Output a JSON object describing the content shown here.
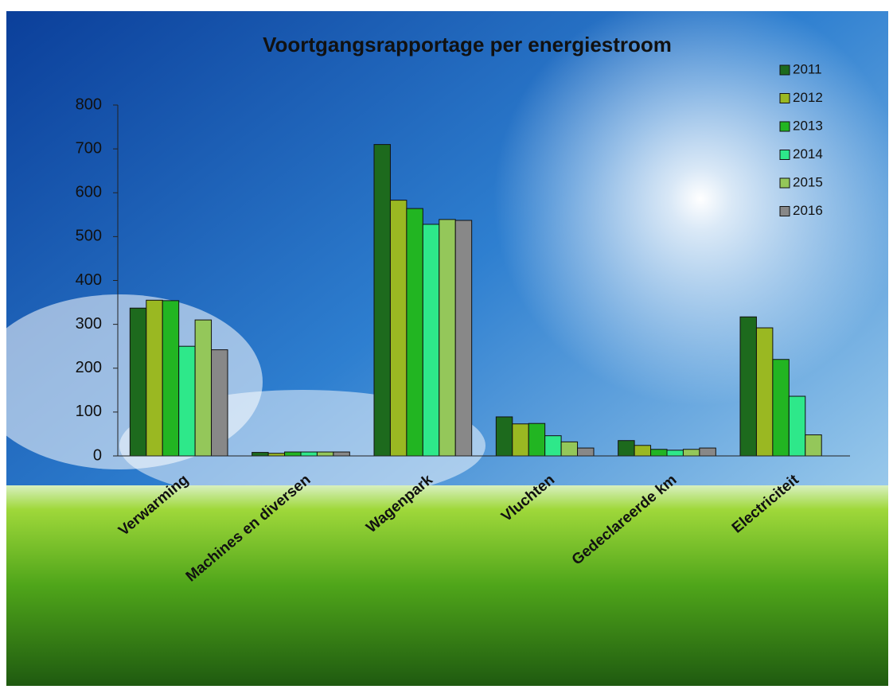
{
  "chart_data": {
    "type": "bar",
    "title": "Voortgangsrapportage per energiestroom",
    "categories": [
      "Verwarming",
      "Machines en diversen",
      "Wagenpark",
      "Vluchten",
      "Gedeclareerde km",
      "Electriciteit"
    ],
    "series": [
      {
        "name": "2011",
        "color": "#1d6a1d",
        "values": [
          337,
          8,
          710,
          89,
          35,
          317
        ]
      },
      {
        "name": "2012",
        "color": "#9ab822",
        "values": [
          355,
          6,
          583,
          73,
          24,
          292
        ]
      },
      {
        "name": "2013",
        "color": "#22b522",
        "values": [
          354,
          9,
          564,
          74,
          15,
          220
        ]
      },
      {
        "name": "2014",
        "color": "#2ee88a",
        "values": [
          250,
          9,
          528,
          46,
          13,
          136
        ]
      },
      {
        "name": "2015",
        "color": "#94c75a",
        "values": [
          310,
          9,
          539,
          32,
          15,
          48
        ]
      },
      {
        "name": "2016",
        "color": "#888888",
        "values": [
          242,
          9,
          537,
          18,
          18,
          null
        ]
      }
    ],
    "ylim": [
      0,
      800
    ],
    "yticks": [
      0,
      100,
      200,
      300,
      400,
      500,
      600,
      700,
      800
    ],
    "legend": "top-right"
  }
}
